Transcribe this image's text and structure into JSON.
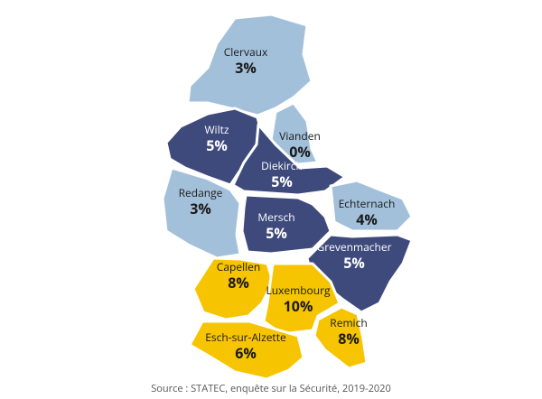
{
  "map": {
    "regions": [
      {
        "name": "Clervaux",
        "value": 3,
        "value_label": "3%",
        "color": "#a3c0da"
      },
      {
        "name": "Wiltz",
        "value": 5,
        "value_label": "5%",
        "color": "#3e4a7c"
      },
      {
        "name": "Vianden",
        "value": 0,
        "value_label": "0%",
        "color": "#a3c0da"
      },
      {
        "name": "Diekirch",
        "value": 5,
        "value_label": "5%",
        "color": "#3e4a7c"
      },
      {
        "name": "Redange",
        "value": 3,
        "value_label": "3%",
        "color": "#a3c0da"
      },
      {
        "name": "Mersch",
        "value": 5,
        "value_label": "5%",
        "color": "#3e4a7c"
      },
      {
        "name": "Echternach",
        "value": 4,
        "value_label": "4%",
        "color": "#a3c0da"
      },
      {
        "name": "Grevenmacher",
        "value": 5,
        "value_label": "5%",
        "color": "#3e4a7c"
      },
      {
        "name": "Capellen",
        "value": 8,
        "value_label": "8%",
        "color": "#f6c400"
      },
      {
        "name": "Luxembourg",
        "value": 10,
        "value_label": "10%",
        "color": "#f6c400"
      },
      {
        "name": "Remich",
        "value": 8,
        "value_label": "8%",
        "color": "#f6c400"
      },
      {
        "name": "Esch-sur-Alzette",
        "value": 6,
        "value_label": "6%",
        "color": "#f6c400"
      }
    ],
    "source": "Source : STATEC, enquête sur la Sécurité, 2019-2020"
  }
}
